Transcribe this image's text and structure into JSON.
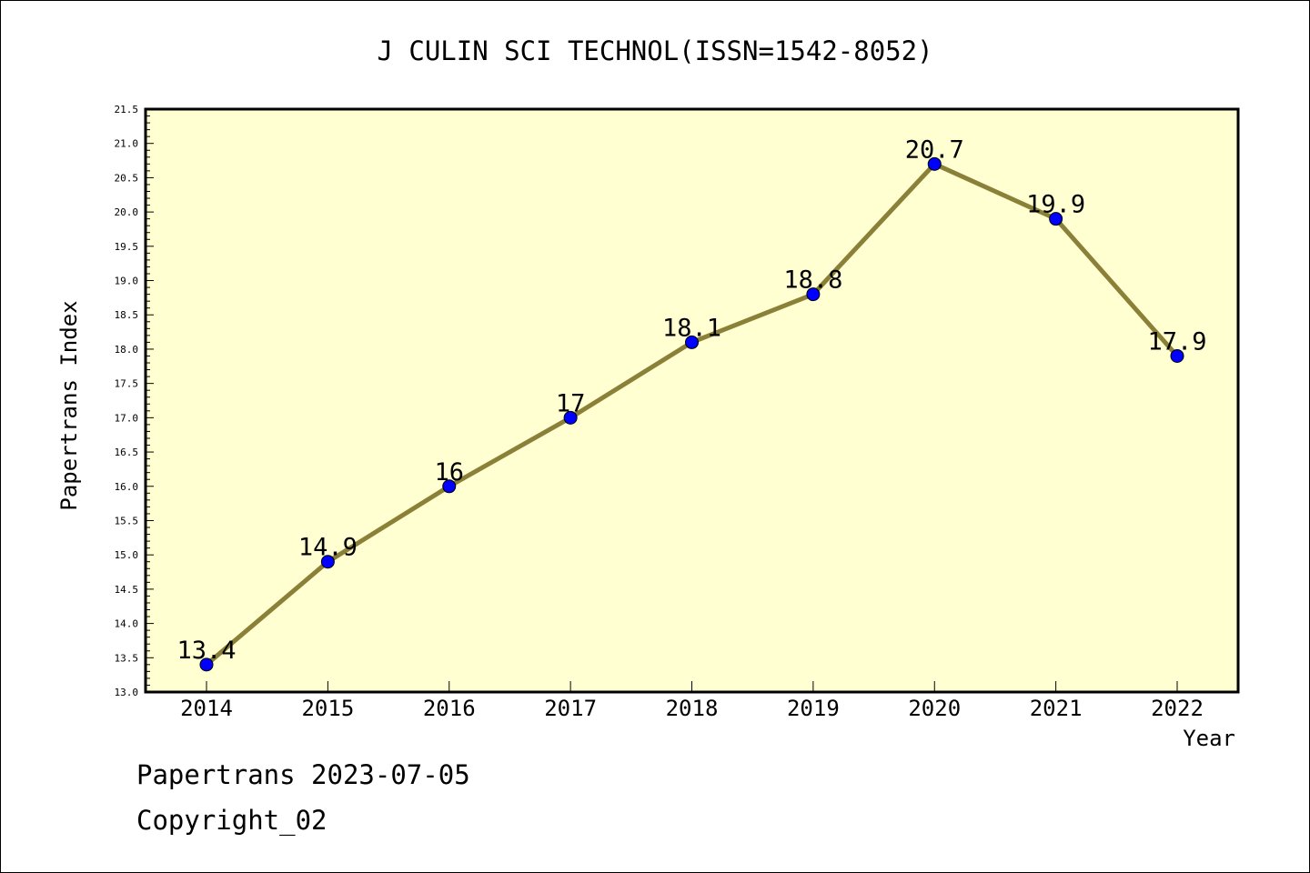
{
  "chart_data": {
    "type": "line",
    "title": "J CULIN SCI TECHNOL(ISSN=1542-8052)",
    "xlabel": "Year",
    "ylabel": "Papertrans Index",
    "categories": [
      "2014",
      "2015",
      "2016",
      "2017",
      "2018",
      "2019",
      "2020",
      "2021",
      "2022"
    ],
    "series": [
      {
        "values": [
          13.4,
          14.9,
          16,
          17,
          18.1,
          18.8,
          20.7,
          19.9,
          17.9
        ],
        "labels": [
          "13.4",
          "14.9",
          "16",
          "17",
          "18.1",
          "18.8",
          "20.7",
          "19.9",
          "17.9"
        ]
      }
    ],
    "ylim": [
      13.0,
      21.5
    ],
    "yticks": [
      "13.0",
      "13.5",
      "14.0",
      "14.5",
      "15.0",
      "15.5",
      "16.0",
      "16.5",
      "17.0",
      "17.5",
      "18.0",
      "18.5",
      "19.0",
      "19.5",
      "20.0",
      "20.5",
      "21.0",
      "21.5"
    ],
    "grid": false,
    "colors": {
      "line": "#8b8038",
      "marker": "#0000ff",
      "plot_background": "#ffffd2"
    }
  },
  "footer": {
    "credit": "Papertrans 2023-07-05",
    "copyright": "Copyright_02"
  }
}
